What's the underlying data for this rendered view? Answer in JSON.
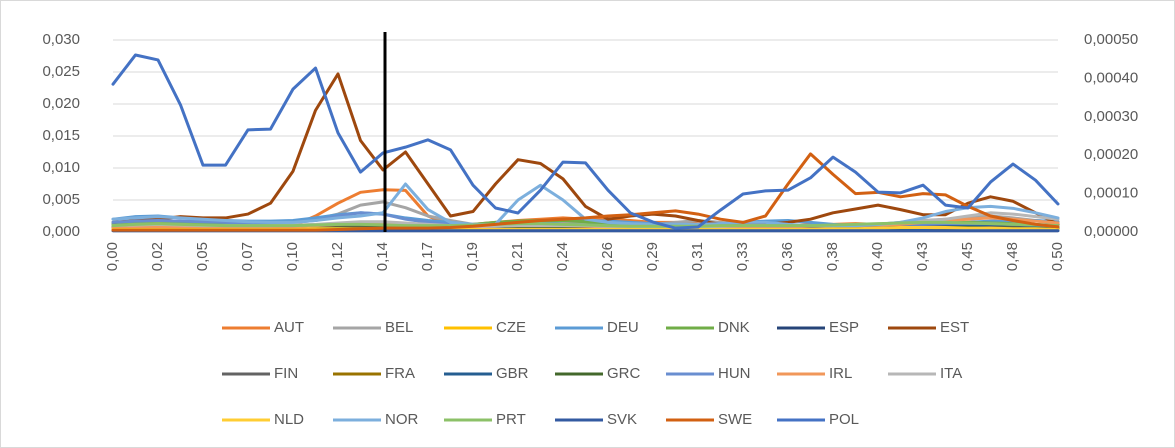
{
  "chart_data": {
    "type": "line",
    "categories": [
      "0,00",
      null,
      "0,02",
      null,
      "0,05",
      null,
      "0,07",
      null,
      "0,10",
      null,
      "0,12",
      null,
      "0,14",
      null,
      "0,17",
      null,
      "0,19",
      null,
      "0,21",
      null,
      "0,24",
      null,
      "0,26",
      null,
      "0,29",
      null,
      "0,31",
      null,
      "0,33",
      null,
      "0,36",
      null,
      "0,38",
      null,
      "0,40",
      null,
      "0,43",
      null,
      "0,45",
      null,
      "0,48",
      null,
      "0,50"
    ],
    "ylim": [
      0,
      0.03
    ],
    "yticks": [
      {
        "value": 0,
        "label": "0,000"
      },
      {
        "value": 0.005,
        "label": "0,005"
      },
      {
        "value": 0.01,
        "label": "0,010"
      },
      {
        "value": 0.015,
        "label": "0,015"
      },
      {
        "value": 0.02,
        "label": "0,020"
      },
      {
        "value": 0.025,
        "label": "0,025"
      },
      {
        "value": 0.03,
        "label": "0,030"
      }
    ],
    "y2lim": [
      0,
      0.0005
    ],
    "y2ticks": [
      {
        "value": 0,
        "label": "0,00000"
      },
      {
        "value": 0.0001,
        "label": "0,00010"
      },
      {
        "value": 0.0002,
        "label": "0,00020"
      },
      {
        "value": 0.0003,
        "label": "0,00030"
      },
      {
        "value": 0.0004,
        "label": "0,00040"
      },
      {
        "value": 0.0005,
        "label": "0,00050"
      }
    ],
    "grid": true,
    "legend": "bottom",
    "series": [
      {
        "name": "AUT",
        "color": "#ED7D31",
        "values": [
          0.0008,
          0.0009,
          0.001,
          0.001,
          0.0009,
          0.0008,
          0.0008,
          0.0009,
          0.001,
          0.0025,
          0.0045,
          0.0062,
          0.0066,
          0.0065,
          0.0025,
          0.001,
          0.0012,
          0.0015,
          0.0018,
          0.002,
          0.0022,
          0.002,
          0.002,
          0.0018,
          0.0015,
          0.0015,
          0.0013,
          0.0012,
          0.001,
          0.001,
          0.001,
          0.0012,
          0.0012,
          0.0013,
          0.0012,
          0.0012,
          0.001,
          0.001,
          0.001,
          0.0012,
          0.001,
          0.0009,
          0.0008
        ]
      },
      {
        "name": "BEL",
        "color": "#A5A5A5",
        "values": [
          0.0012,
          0.0013,
          0.0014,
          0.0013,
          0.0012,
          0.0011,
          0.0012,
          0.0013,
          0.0015,
          0.002,
          0.0028,
          0.0042,
          0.0047,
          0.0038,
          0.0025,
          0.0018,
          0.0012,
          0.001,
          0.0012,
          0.0015,
          0.0015,
          0.0013,
          0.0012,
          0.001,
          0.0012,
          0.0015,
          0.0018,
          0.0015,
          0.0012,
          0.001,
          0.001,
          0.0009,
          0.0009,
          0.001,
          0.0012,
          0.0015,
          0.0018,
          0.002,
          0.0022,
          0.0025,
          0.0022,
          0.0018,
          0.0015
        ]
      },
      {
        "name": "CZE",
        "color": "#FFC000",
        "values": [
          0.0005,
          0.0006,
          0.0006,
          0.0005,
          0.0005,
          0.0004,
          0.0004,
          0.0005,
          0.0005,
          0.0006,
          0.0007,
          0.0008,
          0.0008,
          0.0007,
          0.0006,
          0.0005,
          0.0005,
          0.0005,
          0.0006,
          0.0006,
          0.0006,
          0.0005,
          0.0005,
          0.0004,
          0.0004,
          0.0004,
          0.0005,
          0.0005,
          0.0005,
          0.0006,
          0.0006,
          0.0006,
          0.0007,
          0.0008,
          0.0009,
          0.001,
          0.0012,
          0.0012,
          0.001,
          0.0009,
          0.0008,
          0.0007,
          0.0006
        ]
      },
      {
        "name": "DEU",
        "color": "#5B9BD5",
        "values": [
          0.002,
          0.0024,
          0.0025,
          0.0022,
          0.002,
          0.0018,
          0.0017,
          0.0017,
          0.0018,
          0.0022,
          0.0027,
          0.003,
          0.0028,
          0.0022,
          0.0018,
          0.0015,
          0.0012,
          0.0012,
          0.0013,
          0.0015,
          0.0018,
          0.0018,
          0.0017,
          0.0015,
          0.0013,
          0.0012,
          0.0012,
          0.0013,
          0.0015,
          0.0017,
          0.0018,
          0.0015,
          0.0012,
          0.001,
          0.001,
          0.001,
          0.0012,
          0.0013,
          0.0015,
          0.0017,
          0.0018,
          0.0018,
          0.0016
        ]
      },
      {
        "name": "DNK",
        "color": "#70AD47",
        "values": [
          0.0012,
          0.0014,
          0.0015,
          0.0014,
          0.0013,
          0.0012,
          0.0012,
          0.0011,
          0.001,
          0.0011,
          0.0012,
          0.0012,
          0.0012,
          0.0011,
          0.001,
          0.001,
          0.0012,
          0.0015,
          0.0017,
          0.0018,
          0.0018,
          0.0016,
          0.0013,
          0.001,
          0.0009,
          0.0008,
          0.0008,
          0.0008,
          0.0008,
          0.0009,
          0.001,
          0.001,
          0.001,
          0.0011,
          0.0012,
          0.0013,
          0.0014,
          0.0015,
          0.0015,
          0.0014,
          0.0013,
          0.0012,
          0.001
        ]
      },
      {
        "name": "ESP",
        "color": "#264478",
        "values": [
          0.0003,
          0.0003,
          0.0004,
          0.0003,
          0.0003,
          0.0003,
          0.0003,
          0.0003,
          0.0004,
          0.0004,
          0.0005,
          0.0005,
          0.0004,
          0.0004,
          0.0003,
          0.0003,
          0.0003,
          0.0003,
          0.0003,
          0.0004,
          0.0004,
          0.0004,
          0.0003,
          0.0003,
          0.0003,
          0.0003,
          0.0003,
          0.0003,
          0.0003,
          0.0003,
          0.0003,
          0.0003,
          0.0004,
          0.0004,
          0.0004,
          0.0005,
          0.0006,
          0.0007,
          0.0008,
          0.0009,
          0.001,
          0.0009,
          0.0008
        ]
      },
      {
        "name": "EST",
        "color": "#9E480E",
        "values": [
          0.0015,
          0.0018,
          0.002,
          0.0024,
          0.0022,
          0.0022,
          0.0028,
          0.0045,
          0.0095,
          0.019,
          0.0247,
          0.0143,
          0.0097,
          0.0125,
          0.0075,
          0.0025,
          0.0032,
          0.0075,
          0.0113,
          0.0107,
          0.0083,
          0.004,
          0.002,
          0.0025,
          0.0028,
          0.0025,
          0.0018,
          0.0012,
          0.0013,
          0.0012,
          0.0015,
          0.002,
          0.003,
          0.0036,
          0.0042,
          0.0035,
          0.0027,
          0.0027,
          0.0045,
          0.0055,
          0.0048,
          0.003,
          0.0012
        ]
      },
      {
        "name": "FIN",
        "color": "#636363",
        "values": [
          0.0008,
          0.0008,
          0.0008,
          0.0008,
          0.0008,
          0.0008,
          0.0008,
          0.0008,
          0.0008,
          0.0008,
          0.0009,
          0.001,
          0.001,
          0.0009,
          0.0008,
          0.0007,
          0.0007,
          0.0008,
          0.0008,
          0.0008,
          0.0008,
          0.0008,
          0.0008,
          0.0008,
          0.0008,
          0.0008,
          0.0008,
          0.0008,
          0.0008,
          0.0008,
          0.0007,
          0.0007,
          0.0007,
          0.0008,
          0.0008,
          0.0008,
          0.0009,
          0.0009,
          0.001,
          0.001,
          0.0009,
          0.0008,
          0.0008
        ]
      },
      {
        "name": "FRA",
        "color": "#997300",
        "values": [
          0.0005,
          0.0005,
          0.0005,
          0.0005,
          0.0005,
          0.0005,
          0.0005,
          0.0005,
          0.0005,
          0.0005,
          0.0006,
          0.0006,
          0.0006,
          0.0005,
          0.0005,
          0.0005,
          0.0005,
          0.0005,
          0.0006,
          0.0006,
          0.0005,
          0.0005,
          0.0005,
          0.0005,
          0.0005,
          0.0005,
          0.0005,
          0.0005,
          0.0005,
          0.0005,
          0.0005,
          0.0005,
          0.0005,
          0.0005,
          0.0005,
          0.0005,
          0.0005,
          0.0005,
          0.0005,
          0.0005,
          0.0005,
          0.0005,
          0.0005
        ]
      },
      {
        "name": "GBR",
        "color": "#255E91",
        "values": [
          0.0003,
          0.0003,
          0.0003,
          0.0003,
          0.0003,
          0.0003,
          0.0003,
          0.0003,
          0.0003,
          0.0003,
          0.0003,
          0.0003,
          0.0003,
          0.0003,
          0.0003,
          0.0003,
          0.0003,
          0.0003,
          0.0003,
          0.0003,
          0.0003,
          0.0003,
          0.0003,
          0.0003,
          0.0003,
          0.0003,
          0.0003,
          0.0003,
          0.0003,
          0.0003,
          0.0003,
          0.0003,
          0.0004,
          0.0004,
          0.0005,
          0.0005,
          0.0006,
          0.0008,
          0.001,
          0.0012,
          0.0012,
          0.001,
          0.0008
        ]
      },
      {
        "name": "GRC",
        "color": "#43682B",
        "values": [
          0.0005,
          0.0005,
          0.0005,
          0.0005,
          0.0005,
          0.0005,
          0.0005,
          0.0005,
          0.0005,
          0.0005,
          0.0006,
          0.0006,
          0.0006,
          0.0005,
          0.0005,
          0.0005,
          0.0005,
          0.0005,
          0.0005,
          0.0005,
          0.0005,
          0.0005,
          0.0005,
          0.0005,
          0.0005,
          0.0005,
          0.0005,
          0.0005,
          0.0005,
          0.0005,
          0.0005,
          0.0005,
          0.0005,
          0.0006,
          0.0006,
          0.0006,
          0.0007,
          0.0007,
          0.0007,
          0.0006,
          0.0006,
          0.0005,
          0.0005
        ]
      },
      {
        "name": "HUN",
        "color": "#698ED0",
        "values": [
          0.0015,
          0.0017,
          0.0018,
          0.0017,
          0.0016,
          0.0015,
          0.0014,
          0.0014,
          0.0015,
          0.0018,
          0.0025,
          0.003,
          0.0028,
          0.002,
          0.0015,
          0.0012,
          0.001,
          0.001,
          0.0011,
          0.0012,
          0.0012,
          0.0011,
          0.001,
          0.001,
          0.0009,
          0.0009,
          0.0009,
          0.0009,
          0.001,
          0.001,
          0.001,
          0.001,
          0.001,
          0.001,
          0.0011,
          0.0012,
          0.0012,
          0.0013,
          0.0013,
          0.0013,
          0.0012,
          0.0011,
          0.001
        ]
      },
      {
        "name": "IRL",
        "color": "#F1975A",
        "values": [
          0.0006,
          0.0007,
          0.0007,
          0.0007,
          0.0006,
          0.0006,
          0.0006,
          0.0007,
          0.0008,
          0.001,
          0.0012,
          0.0014,
          0.0015,
          0.0012,
          0.001,
          0.0008,
          0.0008,
          0.0009,
          0.001,
          0.001,
          0.001,
          0.0009,
          0.0008,
          0.0008,
          0.0008,
          0.0008,
          0.0008,
          0.0008,
          0.0008,
          0.0008,
          0.0008,
          0.0009,
          0.001,
          0.001,
          0.0011,
          0.0012,
          0.0015,
          0.0018,
          0.002,
          0.0022,
          0.002,
          0.0017,
          0.0014
        ]
      },
      {
        "name": "ITA",
        "color": "#B7B7B7",
        "values": [
          0.001,
          0.0011,
          0.0012,
          0.0011,
          0.001,
          0.001,
          0.001,
          0.001,
          0.0011,
          0.0012,
          0.0014,
          0.0016,
          0.0016,
          0.0014,
          0.0012,
          0.001,
          0.0009,
          0.0009,
          0.001,
          0.001,
          0.001,
          0.001,
          0.0009,
          0.0009,
          0.0008,
          0.0008,
          0.0008,
          0.0009,
          0.001,
          0.001,
          0.001,
          0.001,
          0.001,
          0.0011,
          0.0012,
          0.0014,
          0.0017,
          0.002,
          0.0025,
          0.003,
          0.0028,
          0.0024,
          0.002
        ]
      },
      {
        "name": "NLD",
        "color": "#FFCD33",
        "values": [
          0.0004,
          0.0004,
          0.0004,
          0.0004,
          0.0004,
          0.0004,
          0.0004,
          0.0004,
          0.0004,
          0.0005,
          0.0005,
          0.0005,
          0.0005,
          0.0005,
          0.0004,
          0.0004,
          0.0004,
          0.0004,
          0.0004,
          0.0004,
          0.0004,
          0.0004,
          0.0004,
          0.0004,
          0.0004,
          0.0004,
          0.0004,
          0.0004,
          0.0004,
          0.0004,
          0.0004,
          0.0004,
          0.0005,
          0.0005,
          0.0006,
          0.0007,
          0.0007,
          0.0007,
          0.0006,
          0.0006,
          0.0005,
          0.0005,
          0.0004
        ]
      },
      {
        "name": "NOR",
        "color": "#7CAFDD",
        "values": [
          0.002,
          0.0022,
          0.0024,
          0.0022,
          0.002,
          0.0018,
          0.0016,
          0.0015,
          0.0015,
          0.0018,
          0.0022,
          0.0025,
          0.003,
          0.0075,
          0.0035,
          0.0015,
          0.0012,
          0.0012,
          0.005,
          0.0073,
          0.005,
          0.002,
          0.0015,
          0.0013,
          0.0012,
          0.0012,
          0.0012,
          0.0013,
          0.0015,
          0.0015,
          0.0012,
          0.001,
          0.001,
          0.001,
          0.0012,
          0.0015,
          0.0022,
          0.0032,
          0.0038,
          0.004,
          0.0037,
          0.003,
          0.0022
        ]
      },
      {
        "name": "PRT",
        "color": "#8CC168",
        "values": [
          0.001,
          0.0012,
          0.0013,
          0.0012,
          0.0011,
          0.001,
          0.001,
          0.001,
          0.001,
          0.0011,
          0.0012,
          0.0012,
          0.0011,
          0.001,
          0.001,
          0.001,
          0.0011,
          0.0012,
          0.0013,
          0.0013,
          0.0012,
          0.0011,
          0.001,
          0.0009,
          0.0009,
          0.0009,
          0.0009,
          0.001,
          0.001,
          0.001,
          0.001,
          0.001,
          0.0011,
          0.0012,
          0.0013,
          0.0014,
          0.0015,
          0.0015,
          0.0014,
          0.0013,
          0.0012,
          0.0011,
          0.001
        ]
      },
      {
        "name": "SVK",
        "color": "#335AA1",
        "values": [
          0.0002,
          0.0002,
          0.0002,
          0.0002,
          0.0002,
          0.0002,
          0.0002,
          0.0002,
          0.0002,
          0.0002,
          0.0002,
          0.0002,
          0.0002,
          0.0002,
          0.0002,
          0.0002,
          0.0002,
          0.0002,
          0.0002,
          0.0002,
          0.0002,
          0.0002,
          0.0002,
          0.0002,
          0.0002,
          0.0002,
          0.0002,
          0.0002,
          0.0002,
          0.0002,
          0.0002,
          0.0002,
          0.0002,
          0.0002,
          0.0002,
          0.0002,
          0.0002,
          0.0002,
          0.0002,
          0.0002,
          0.0002,
          0.0002,
          0.0002
        ]
      },
      {
        "name": "SWE",
        "color": "#D26012",
        "values": [
          0.0003,
          0.0003,
          0.0003,
          0.0003,
          0.0003,
          0.0003,
          0.0003,
          0.0003,
          0.0003,
          0.0003,
          0.0004,
          0.0005,
          0.0006,
          0.0006,
          0.0006,
          0.0007,
          0.0009,
          0.0012,
          0.0015,
          0.0018,
          0.002,
          0.0022,
          0.0025,
          0.0027,
          0.003,
          0.0033,
          0.0028,
          0.002,
          0.0015,
          0.0025,
          0.0075,
          0.0122,
          0.009,
          0.006,
          0.0062,
          0.0055,
          0.006,
          0.0058,
          0.004,
          0.0025,
          0.0018,
          0.0012,
          0.0008
        ]
      },
      {
        "name": "POL",
        "color": "#4472C4",
        "axis": "y2",
        "values": [
          0.000385,
          0.000461,
          0.000448,
          0.000331,
          0.000174,
          0.000174,
          0.000266,
          0.000268,
          0.000372,
          0.000427,
          0.000258,
          0.000156,
          0.000206,
          0.000221,
          0.00024,
          0.000214,
          0.000122,
          6.25e-05,
          4.95e-05,
          0.000109,
          0.000182,
          0.00018,
          0.000109,
          4.95e-05,
          2.6e-05,
          1e-05,
          1.3e-05,
          5.7e-05,
          9.9e-05,
          0.000107,
          0.000109,
          0.000141,
          0.000195,
          0.000156,
          0.000104,
          0.000102,
          0.000122,
          7e-05,
          6.25e-05,
          0.00013,
          0.000177,
          0.000135,
          7.3e-05
        ]
      }
    ]
  }
}
